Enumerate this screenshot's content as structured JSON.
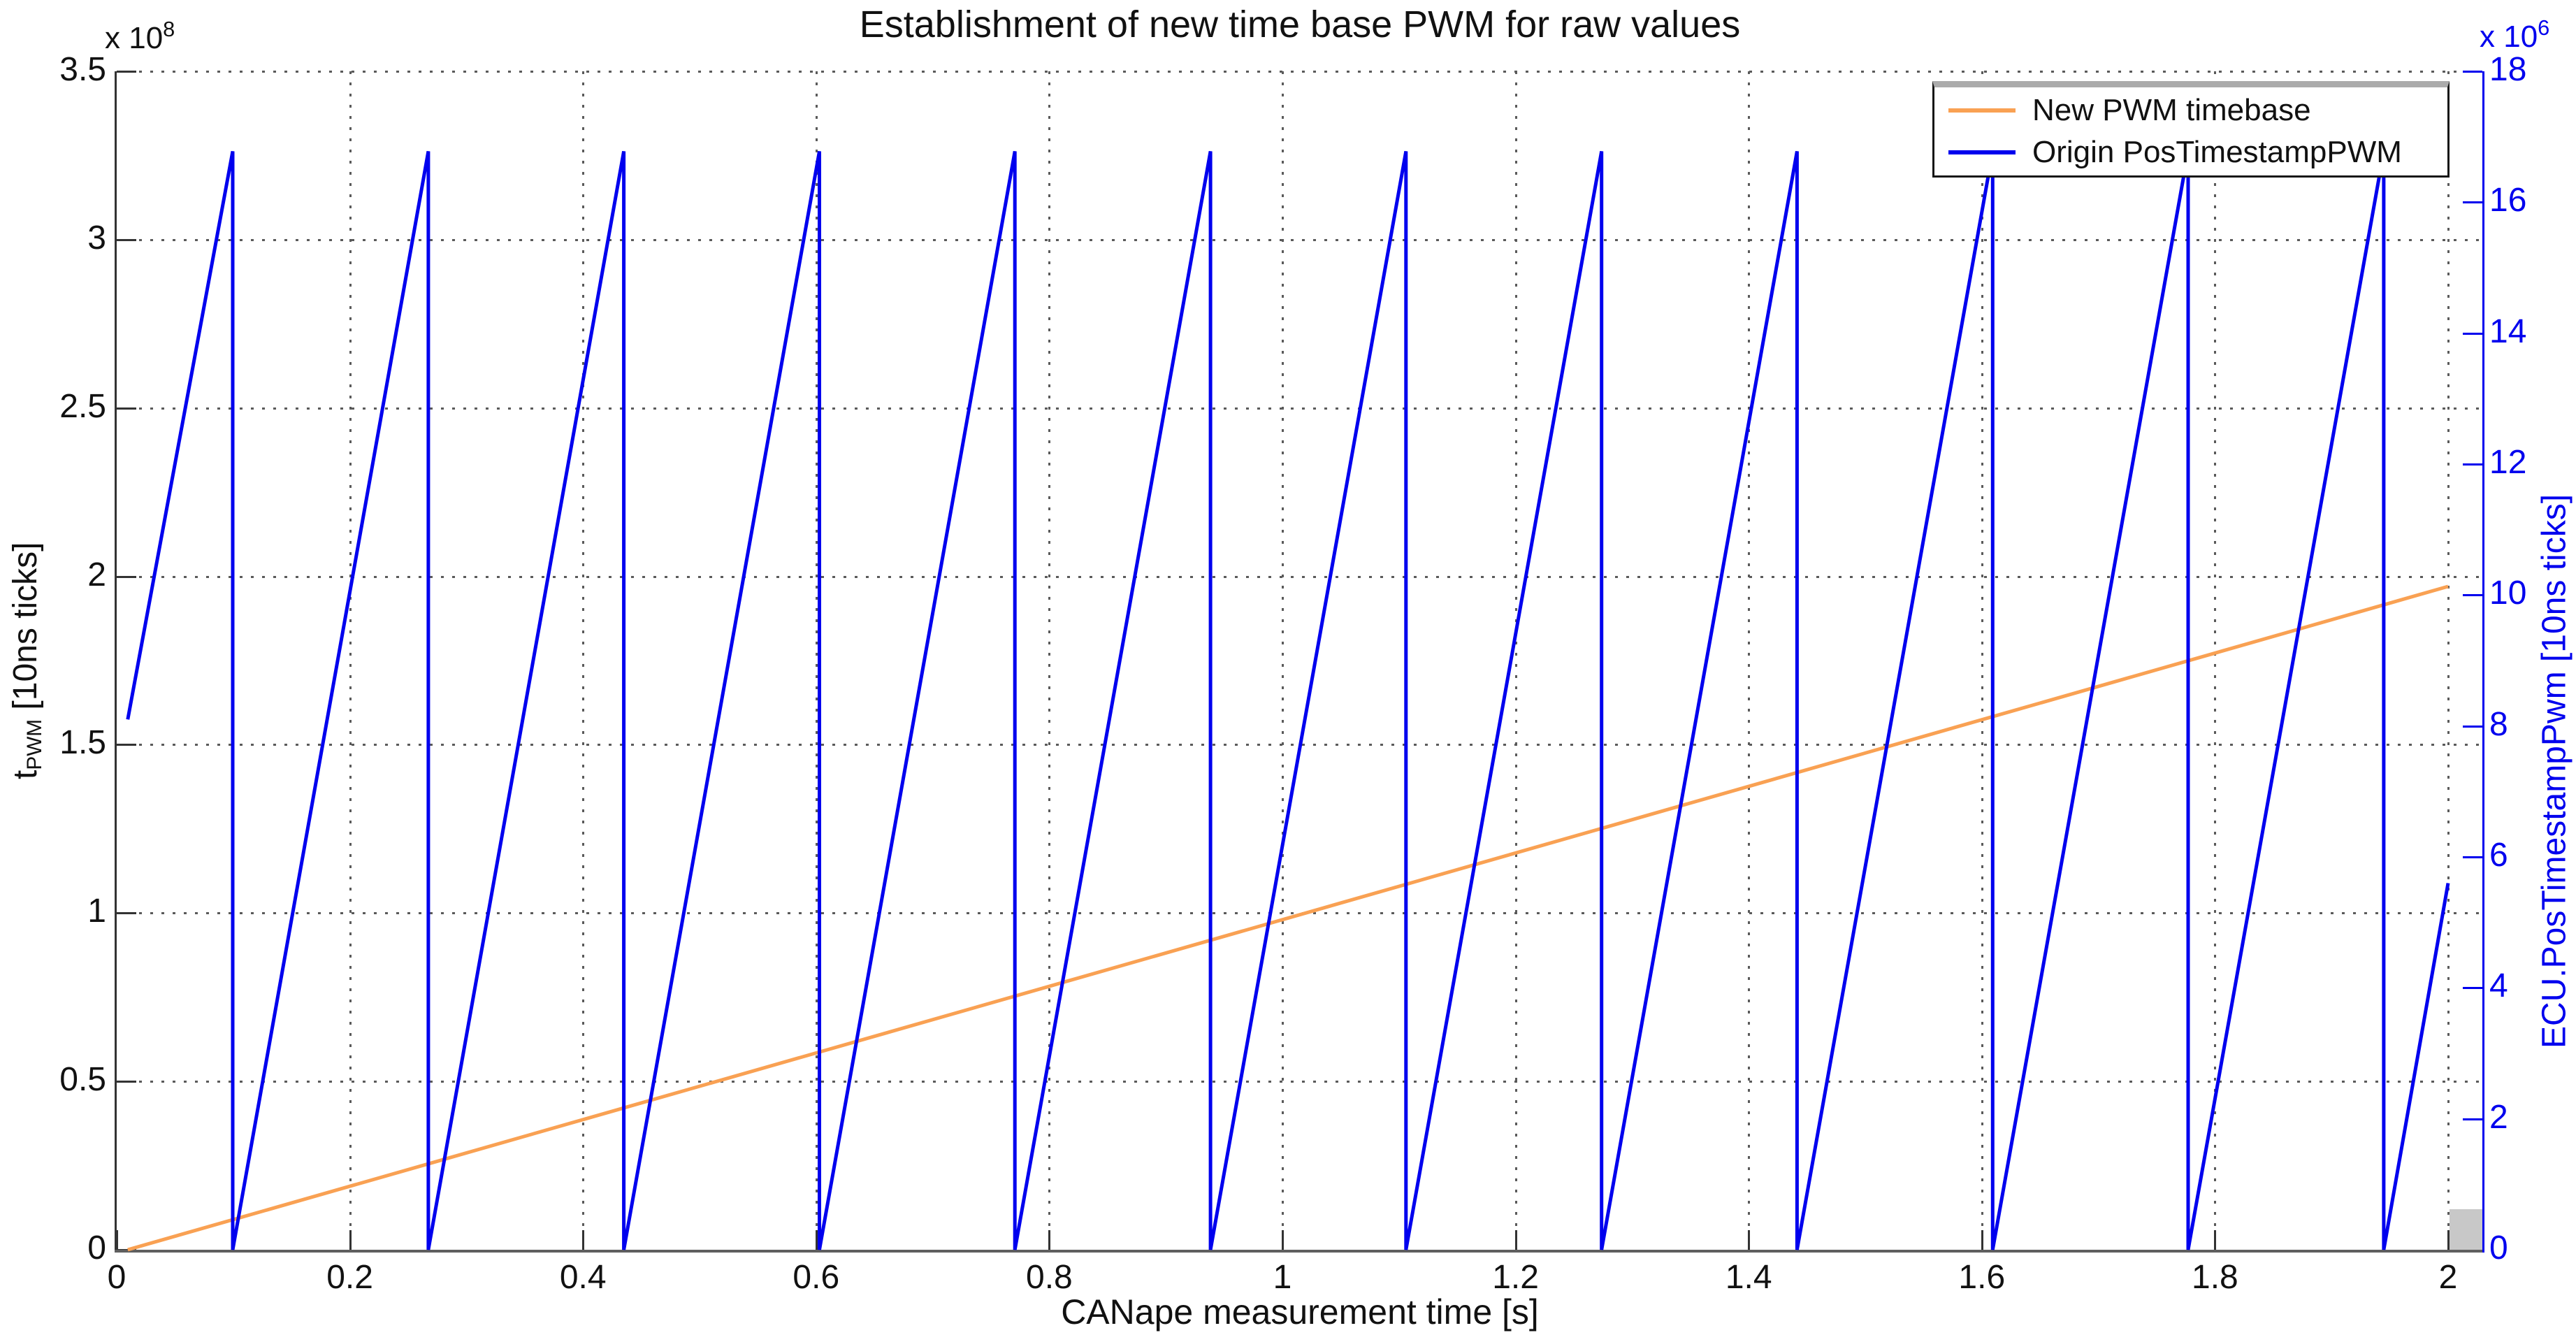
{
  "figure": {
    "title": "Establishment of new time base PWM for raw values",
    "x_axis_label": "CANape measurement time [s]",
    "y_axis_left_label": {
      "prefix": "t",
      "sub": "PWM",
      "suffix": " [10ns ticks]"
    },
    "y_axis_right_label": "ECU.PosTimestampPwm [10ns ticks]",
    "left_scale": {
      "base": "x 10",
      "exponent": "8"
    },
    "right_scale": {
      "base": "x 10",
      "exponent": "6"
    }
  },
  "legend": {
    "items": [
      {
        "label": "New PWM timebase",
        "color": "#F9A153"
      },
      {
        "label": "Origin PosTimestampPWM",
        "color": "#0000EE"
      }
    ]
  },
  "colors": {
    "orange_series": "#F9A153",
    "blue_series": "#0000EE",
    "left_axis": "#333333",
    "bottom_axis": "#5f5f5f",
    "right_axis": "#0000EE",
    "grid": "#5a5a5a",
    "corner_artifact": "#c8c8c8",
    "legend_top_bar": "#ababab"
  },
  "chart_data": {
    "type": "line",
    "title": "Establishment of new time base PWM for raw values",
    "xlabel": "CANape measurement time [s]",
    "ylabel_left": "t_PWM [10ns ticks]",
    "ylabel_right": "ECU.PosTimestampPwm [10ns ticks]",
    "xlim": [
      0,
      2.03
    ],
    "ylim_left": [
      0,
      350000000
    ],
    "ylim_right": [
      0,
      18000000
    ],
    "x_ticks": [
      0,
      0.2,
      0.4,
      0.6,
      0.8,
      1,
      1.2,
      1.4,
      1.6,
      1.8,
      2
    ],
    "x_tick_labels": [
      "0",
      "0.2",
      "0.4",
      "0.6",
      "0.8",
      "1",
      "1.2",
      "1.4",
      "1.6",
      "1.8",
      "2"
    ],
    "y_ticks_left": [
      0,
      0.5,
      1,
      1.5,
      2,
      2.5,
      3,
      3.5
    ],
    "y_tick_labels_left": [
      "0",
      "0.5",
      "1",
      "1.5",
      "2",
      "2.5",
      "3",
      "3.5"
    ],
    "left_scale_factor": "x 10^8",
    "y_ticks_right": [
      0,
      2,
      4,
      6,
      8,
      10,
      12,
      14,
      16,
      18
    ],
    "y_tick_labels_right": [
      "0",
      "2",
      "4",
      "6",
      "8",
      "10",
      "12",
      "14",
      "16",
      "18"
    ],
    "right_scale_factor": "x 10^6",
    "grid": "dotted, at x ticks and left y ticks",
    "legend_position": "top-right inside axes",
    "series": [
      {
        "name": "New PWM timebase",
        "axis": "left",
        "color": "#F9A153",
        "shape": "straight line, slope ~1e8 ticks per second",
        "points": [
          [
            0.0095,
            0
          ],
          [
            2.0,
            197000000
          ]
        ]
      },
      {
        "name": "Origin PosTimestampPWM",
        "axis": "right",
        "color": "#0000EE",
        "shape": "sawtooth, 24-bit counter wrap (peak 16777216 = 2^24), period ~0.1678 s",
        "sawtooth": {
          "start_point": [
            0.0095,
            8100000
          ],
          "reset_times": [
            0.0995,
            0.2673,
            0.435,
            0.6028,
            0.7705,
            0.9383,
            1.106,
            1.2738,
            1.4415,
            1.6093,
            1.777,
            1.9448
          ],
          "peak_value": 16777216,
          "valley_value": 0,
          "end_point": [
            2.0,
            5600000
          ]
        }
      }
    ]
  }
}
